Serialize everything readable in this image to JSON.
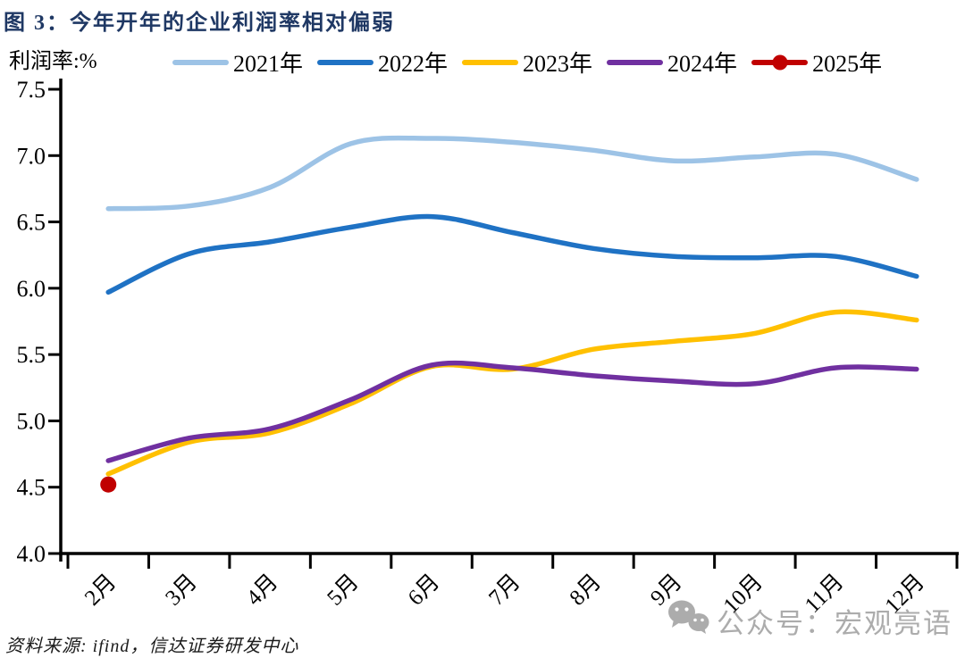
{
  "title": "图 3：今年开年的企业利润率相对偏弱",
  "footer": {
    "source_text": "资料来源: ifind，信达证券研发中心"
  },
  "watermark": {
    "text": "公众号：宏观亮语",
    "icon": "wechat-icon",
    "color": "#ACACAC"
  },
  "chart_data": {
    "type": "line",
    "title": "今年开年的企业利润率相对偏弱",
    "xlabel": "",
    "ylabel": "利润率:%",
    "categories": [
      "2月",
      "3月",
      "4月",
      "5月",
      "6月",
      "7月",
      "8月",
      "9月",
      "10月",
      "11月",
      "12月"
    ],
    "series": [
      {
        "name": "2021年",
        "color": "#9DC3E6",
        "values": [
          6.6,
          6.62,
          6.76,
          7.09,
          7.13,
          7.1,
          7.04,
          6.96,
          6.99,
          7.01,
          6.82
        ]
      },
      {
        "name": "2022年",
        "color": "#1F72C4",
        "values": [
          5.97,
          6.26,
          6.35,
          6.46,
          6.54,
          6.42,
          6.3,
          6.24,
          6.23,
          6.24,
          6.09
        ]
      },
      {
        "name": "2023年",
        "color": "#FFC000",
        "values": [
          4.6,
          4.84,
          4.91,
          5.13,
          5.41,
          5.39,
          5.54,
          5.6,
          5.66,
          5.82,
          5.76
        ]
      },
      {
        "name": "2024年",
        "color": "#7030A0",
        "values": [
          4.7,
          4.87,
          4.94,
          5.16,
          5.42,
          5.4,
          5.34,
          5.3,
          5.28,
          5.4,
          5.39
        ]
      },
      {
        "name": "2025年",
        "color": "#C00000",
        "values": [
          4.52,
          null,
          null,
          null,
          null,
          null,
          null,
          null,
          null,
          null,
          null
        ],
        "marker": "circle"
      }
    ],
    "ylim": [
      4.0,
      7.5
    ],
    "ytick_step": 0.5,
    "ytick_labels": [
      "4.0",
      "4.5",
      "5.0",
      "5.5",
      "6.0",
      "6.5",
      "7.0",
      "7.5"
    ],
    "grid": false,
    "legend_position": "top",
    "axis_color": "#000000"
  }
}
